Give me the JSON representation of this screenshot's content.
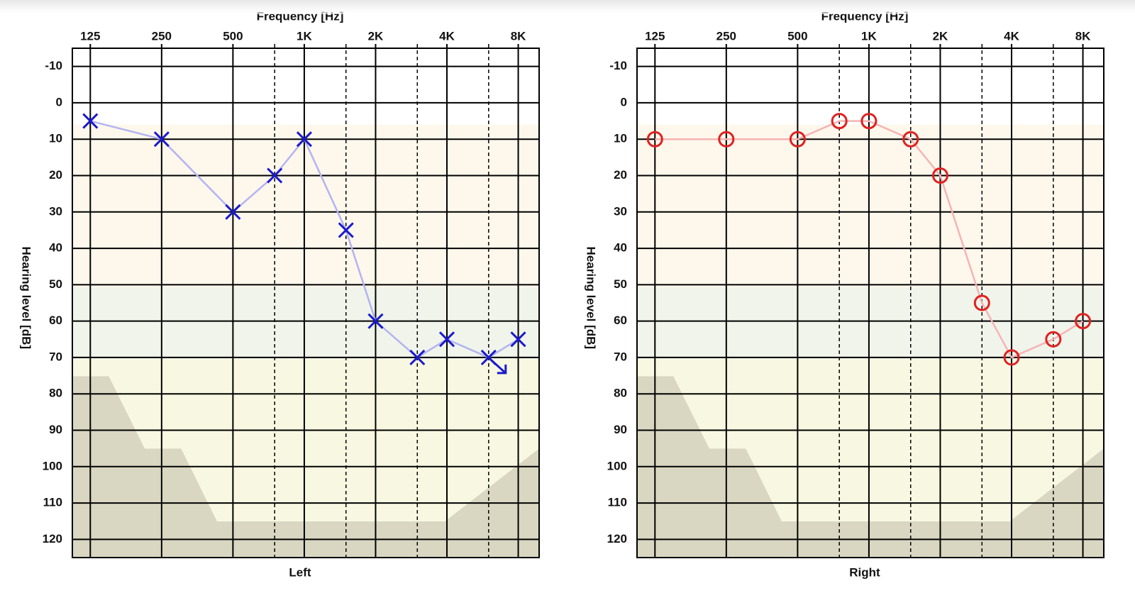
{
  "chart_data": [
    {
      "type": "line",
      "title": "Frequency [Hz]",
      "y_label": "Hearing level [dB]",
      "panel_label": "Left",
      "panel_label_color": "#2222cc",
      "x_scale": "log",
      "y_inverted": true,
      "grid": true,
      "x": [
        125,
        250,
        500,
        750,
        1000,
        1500,
        2000,
        3000,
        4000,
        6000,
        8000
      ],
      "series": [
        {
          "name": "Left",
          "color": "#1a1acc",
          "line_color": "#b4b4f0",
          "marker": "x",
          "values": [
            5,
            10,
            30,
            20,
            10,
            35,
            60,
            70,
            65,
            70,
            65
          ],
          "no_response": [
            false,
            false,
            false,
            false,
            false,
            false,
            false,
            false,
            false,
            true,
            false
          ]
        }
      ],
      "xlim": [
        105,
        9800
      ],
      "ylim": [
        -15,
        125
      ],
      "xticks": [
        125,
        250,
        500,
        {
          "value": 1000,
          "label": "1K"
        },
        {
          "value": 2000,
          "label": "2K"
        },
        {
          "value": 4000,
          "label": "4K"
        },
        {
          "value": 8000,
          "label": "8K"
        }
      ],
      "minor_xticks": [
        750,
        1500,
        3000,
        6000
      ],
      "yticks": [
        -10,
        0,
        10,
        20,
        30,
        40,
        50,
        60,
        70,
        80,
        90,
        100,
        110,
        120
      ]
    },
    {
      "type": "line",
      "title": "Frequency [Hz]",
      "y_label": "Hearing level [dB]",
      "panel_label": "Right",
      "panel_label_color": "#e02020",
      "x_scale": "log",
      "y_inverted": true,
      "grid": true,
      "x": [
        125,
        250,
        500,
        750,
        1000,
        1500,
        2000,
        3000,
        4000,
        6000,
        8000
      ],
      "series": [
        {
          "name": "Right",
          "color": "#e02020",
          "line_color": "#f5b4b4",
          "marker": "o",
          "values": [
            10,
            10,
            10,
            5,
            5,
            10,
            20,
            55,
            70,
            65,
            60
          ],
          "no_response": [
            false,
            false,
            false,
            false,
            false,
            false,
            false,
            false,
            false,
            false,
            false
          ]
        }
      ],
      "xlim": [
        105,
        9800
      ],
      "ylim": [
        -15,
        125
      ],
      "xticks": [
        125,
        250,
        500,
        {
          "value": 1000,
          "label": "1K"
        },
        {
          "value": 2000,
          "label": "2K"
        },
        {
          "value": 4000,
          "label": "4K"
        },
        {
          "value": 8000,
          "label": "8K"
        }
      ],
      "minor_xticks": [
        750,
        1500,
        3000,
        6000
      ],
      "yticks": [
        -10,
        0,
        10,
        20,
        30,
        40,
        50,
        60,
        70,
        80,
        90,
        100,
        110,
        120
      ]
    }
  ]
}
